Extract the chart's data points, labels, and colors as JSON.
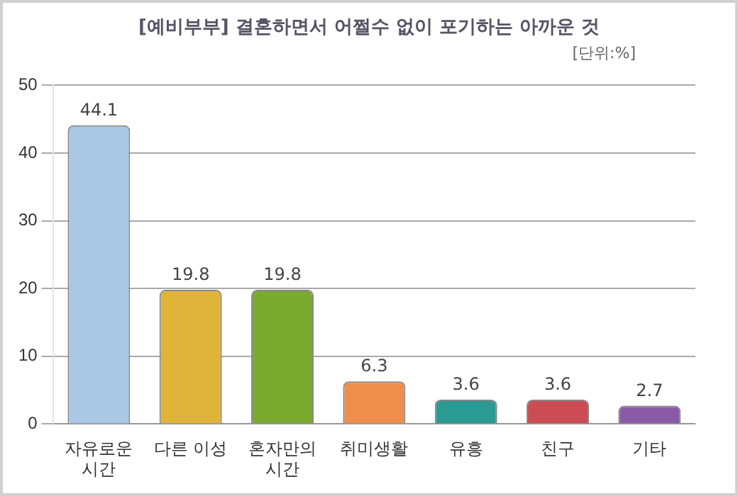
{
  "chart_data": {
    "type": "bar",
    "title": "[예비부부] 결혼하면서 어쩔수 없이 포기하는 아까운 것",
    "subtitle": "[단위:%]",
    "categories": [
      "자유로운\n시간",
      "다른 이성",
      "혼자만의\n시간",
      "취미생활",
      "유흥",
      "친구",
      "기타"
    ],
    "values": [
      44.1,
      19.8,
      19.8,
      6.3,
      3.6,
      3.6,
      2.7
    ],
    "colors": [
      "#a9c8e6",
      "#e0b43a",
      "#7aaa2e",
      "#ee8f4e",
      "#2a9a92",
      "#cc4c54",
      "#8a5aa6"
    ],
    "ylim": [
      0,
      50
    ],
    "yticks": [
      0,
      10,
      20,
      30,
      40,
      50
    ],
    "grid": "y",
    "data_labels": true,
    "legend": false
  }
}
